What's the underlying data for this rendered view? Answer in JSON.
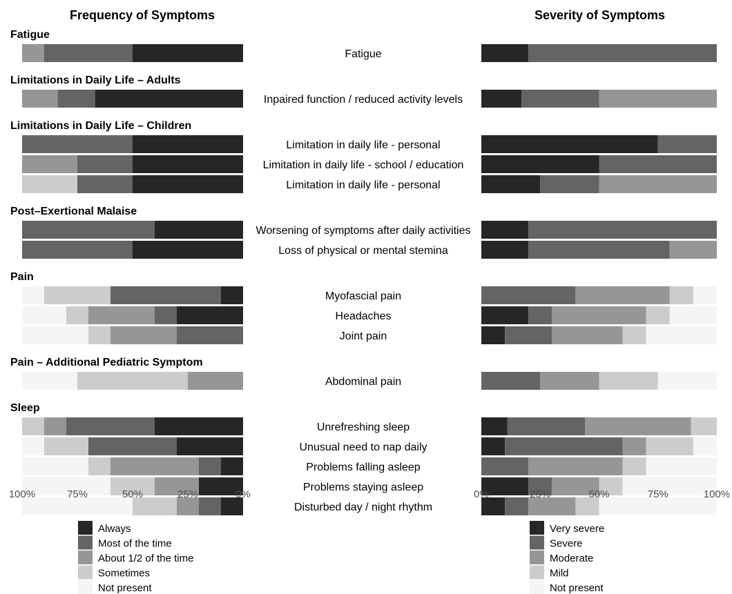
{
  "chart_data": {
    "type": "bar",
    "subtype": "diverging-stacked-horizontal",
    "titles": {
      "frequency": "Frequency of Symptoms",
      "severity": "Severity of Symptoms"
    },
    "groups": [
      {
        "name": "Fatigue",
        "items": [
          {
            "label": "Fatigue",
            "frequency": [
              50,
              40,
              10,
              0,
              0
            ],
            "severity": [
              20,
              80,
              0,
              0,
              0
            ]
          }
        ]
      },
      {
        "name": "Limitations in Daily Life – Adults",
        "items": [
          {
            "label": "Inpaired function / reduced activity levels",
            "frequency": [
              67,
              17,
              16,
              0,
              0
            ],
            "severity": [
              17,
              33,
              50,
              0,
              0
            ]
          }
        ]
      },
      {
        "name": "Limitations in Daily Life – Children",
        "items": [
          {
            "label": "Limitation in daily life - personal",
            "frequency": [
              50,
              50,
              0,
              0,
              0
            ],
            "severity": [
              75,
              25,
              0,
              0,
              0
            ]
          },
          {
            "label": "Limitation in daily life - school / education",
            "frequency": [
              50,
              25,
              25,
              0,
              0
            ],
            "severity": [
              50,
              50,
              0,
              0,
              0
            ]
          },
          {
            "label": "Limitation in daily life - personal",
            "frequency": [
              50,
              25,
              0,
              25,
              0
            ],
            "severity": [
              25,
              25,
              50,
              0,
              0
            ]
          }
        ]
      },
      {
        "name": "Post–Exertional Malaise",
        "items": [
          {
            "label": "Worsening of symptoms after daily activities",
            "frequency": [
              40,
              60,
              0,
              0,
              0
            ],
            "severity": [
              20,
              80,
              0,
              0,
              0
            ]
          },
          {
            "label": "Loss of physical or mental stemina",
            "frequency": [
              50,
              50,
              0,
              0,
              0
            ],
            "severity": [
              20,
              60,
              20,
              0,
              0
            ]
          }
        ]
      },
      {
        "name": "Pain",
        "items": [
          {
            "label": "Myofascial pain",
            "frequency": [
              10,
              50,
              0,
              30,
              10
            ],
            "severity": [
              0,
              40,
              40,
              10,
              10
            ]
          },
          {
            "label": "Headaches",
            "frequency": [
              30,
              10,
              30,
              10,
              20
            ],
            "severity": [
              20,
              10,
              40,
              10,
              20
            ]
          },
          {
            "label": "Joint pain",
            "frequency": [
              0,
              30,
              30,
              10,
              30
            ],
            "severity": [
              10,
              20,
              30,
              10,
              30
            ]
          }
        ]
      },
      {
        "name": "Pain – Additional Pediatric Symptom",
        "items": [
          {
            "label": "Abdominal pain",
            "frequency": [
              0,
              0,
              25,
              50,
              25
            ],
            "severity": [
              0,
              25,
              25,
              25,
              25
            ]
          }
        ]
      },
      {
        "name": "Sleep",
        "items": [
          {
            "label": "Unrefreshing sleep",
            "frequency": [
              40,
              40,
              10,
              10,
              0
            ],
            "severity": [
              11,
              33,
              45,
              11,
              0
            ]
          },
          {
            "label": "Unusual need to nap daily",
            "frequency": [
              30,
              40,
              0,
              20,
              10
            ],
            "severity": [
              10,
              50,
              10,
              20,
              10
            ]
          },
          {
            "label": "Problems falling asleep",
            "frequency": [
              10,
              10,
              40,
              10,
              30
            ],
            "severity": [
              0,
              20,
              40,
              10,
              30
            ]
          },
          {
            "label": "Problems staying asleep",
            "frequency": [
              20,
              0,
              20,
              20,
              40
            ],
            "severity": [
              20,
              10,
              20,
              10,
              40
            ]
          },
          {
            "label": "Disturbed day / night rhythm",
            "frequency": [
              10,
              10,
              10,
              20,
              50
            ],
            "severity": [
              10,
              10,
              20,
              10,
              50
            ]
          }
        ]
      }
    ],
    "frequency_axis": {
      "ticks": [
        "100%",
        "75%",
        "50%",
        "25%",
        "0%"
      ],
      "direction": "right-to-left"
    },
    "severity_axis": {
      "ticks": [
        "0%",
        "25%",
        "50%",
        "75%",
        "100%"
      ],
      "direction": "left-to-right"
    },
    "frequency_legend": [
      "Always",
      "Most of the time",
      "About 1/2 of the time",
      "Sometimes",
      "Not present"
    ],
    "severity_legend": [
      "Very severe",
      "Severe",
      "Moderate",
      "Mild",
      "Not present"
    ],
    "colors": [
      "#262626",
      "#646464",
      "#969696",
      "#cccccc",
      "#f5f5f5"
    ],
    "legend_position": "bottom"
  }
}
